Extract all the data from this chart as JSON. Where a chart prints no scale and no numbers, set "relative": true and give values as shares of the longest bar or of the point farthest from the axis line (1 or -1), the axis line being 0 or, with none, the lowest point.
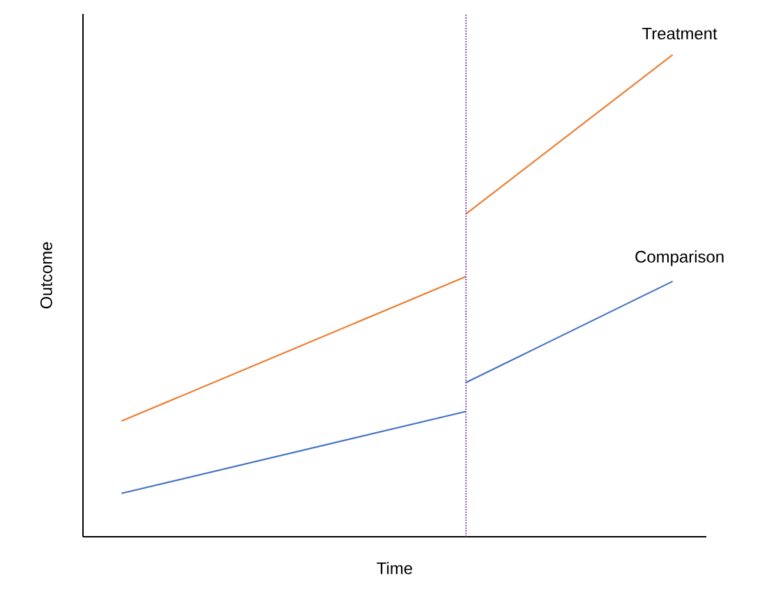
{
  "chart_data": {
    "type": "line",
    "relative": true,
    "xlabel": "Time",
    "ylabel": "Outcome",
    "tick_labels": false,
    "categories": [
      null,
      null,
      null,
      null,
      null,
      null,
      null,
      null,
      null
    ],
    "series": [
      {
        "color": "#ed7d31",
        "values": [
          0.24,
          null,
          null,
          null,
          null,
          0.54,
          null,
          null,
          null
        ]
      },
      {
        "name": "Treatment",
        "color": "#ed7d31",
        "values": [
          null,
          null,
          null,
          null,
          null,
          0.67,
          null,
          null,
          1.0
        ]
      },
      {
        "color": "#4472c4",
        "values": [
          0.09,
          null,
          null,
          null,
          null,
          0.26,
          null,
          null,
          null
        ]
      },
      {
        "name": "Comparison",
        "color": "#4472c4",
        "values": [
          null,
          null,
          null,
          null,
          null,
          0.32,
          null,
          null,
          0.53
        ]
      }
    ]
  }
}
